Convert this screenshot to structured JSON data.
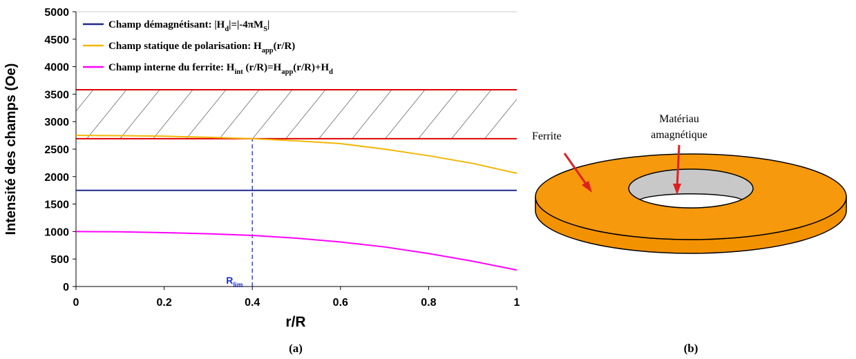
{
  "chart_data": {
    "type": "line",
    "xlabel": "r/R",
    "ylabel": "Intensité des champs (Oe)",
    "caption": "(a)",
    "xlim": [
      0,
      1
    ],
    "xticks": [
      0,
      0.2,
      0.4,
      0.6,
      0.8,
      1
    ],
    "ylim": [
      0,
      5000
    ],
    "yticks": [
      0,
      500,
      1000,
      1500,
      2000,
      2500,
      3000,
      3500,
      4000,
      4500,
      5000
    ],
    "series": [
      {
        "name": [
          {
            "text": "Champ démagnétisant: |H",
            "sub": false
          },
          {
            "text": "d",
            "sub": true
          },
          {
            "text": "|=|-4πM",
            "sub": false
          },
          {
            "text": "S",
            "sub": true
          },
          {
            "text": "|",
            "sub": false
          }
        ],
        "color": "#1f2a8c",
        "x": [
          0,
          1
        ],
        "values": [
          1750,
          1750
        ]
      },
      {
        "name": [
          {
            "text": "Champ statique de polarisation: H",
            "sub": false
          },
          {
            "text": "app",
            "sub": true
          },
          {
            "text": "(r/R)",
            "sub": false
          }
        ],
        "color": "#f2b705",
        "x": [
          0,
          0.1,
          0.2,
          0.3,
          0.4,
          0.5,
          0.6,
          0.7,
          0.8,
          0.9,
          1
        ],
        "values": [
          2750,
          2745,
          2735,
          2715,
          2690,
          2650,
          2600,
          2500,
          2380,
          2240,
          2060
        ]
      },
      {
        "name": [
          {
            "text": "Champ interne du ferrite: H",
            "sub": false
          },
          {
            "text": "int",
            "sub": true
          },
          {
            "text": " (r/R)=H",
            "sub": false
          },
          {
            "text": "app",
            "sub": true
          },
          {
            "text": "(r/R)+H",
            "sub": false
          },
          {
            "text": "d",
            "sub": true
          }
        ],
        "color": "#ff00ff",
        "x": [
          0,
          0.1,
          0.2,
          0.3,
          0.4,
          0.5,
          0.6,
          0.7,
          0.8,
          0.9,
          1
        ],
        "values": [
          1000,
          995,
          980,
          960,
          930,
          880,
          810,
          720,
          600,
          460,
          300
        ]
      }
    ],
    "hatched_band": {
      "bounds": [
        2690,
        3580
      ],
      "color": "#e00000"
    },
    "vline": {
      "x": 0.4,
      "color": "#1a2ecf",
      "label": [
        {
          "text": "R",
          "sub": false
        },
        {
          "text": "lim",
          "sub": true
        }
      ]
    }
  },
  "diagram": {
    "labels": [
      [
        "Ferrite"
      ],
      [
        "Matériau",
        "amagnétique"
      ]
    ],
    "caption": "(b)"
  }
}
